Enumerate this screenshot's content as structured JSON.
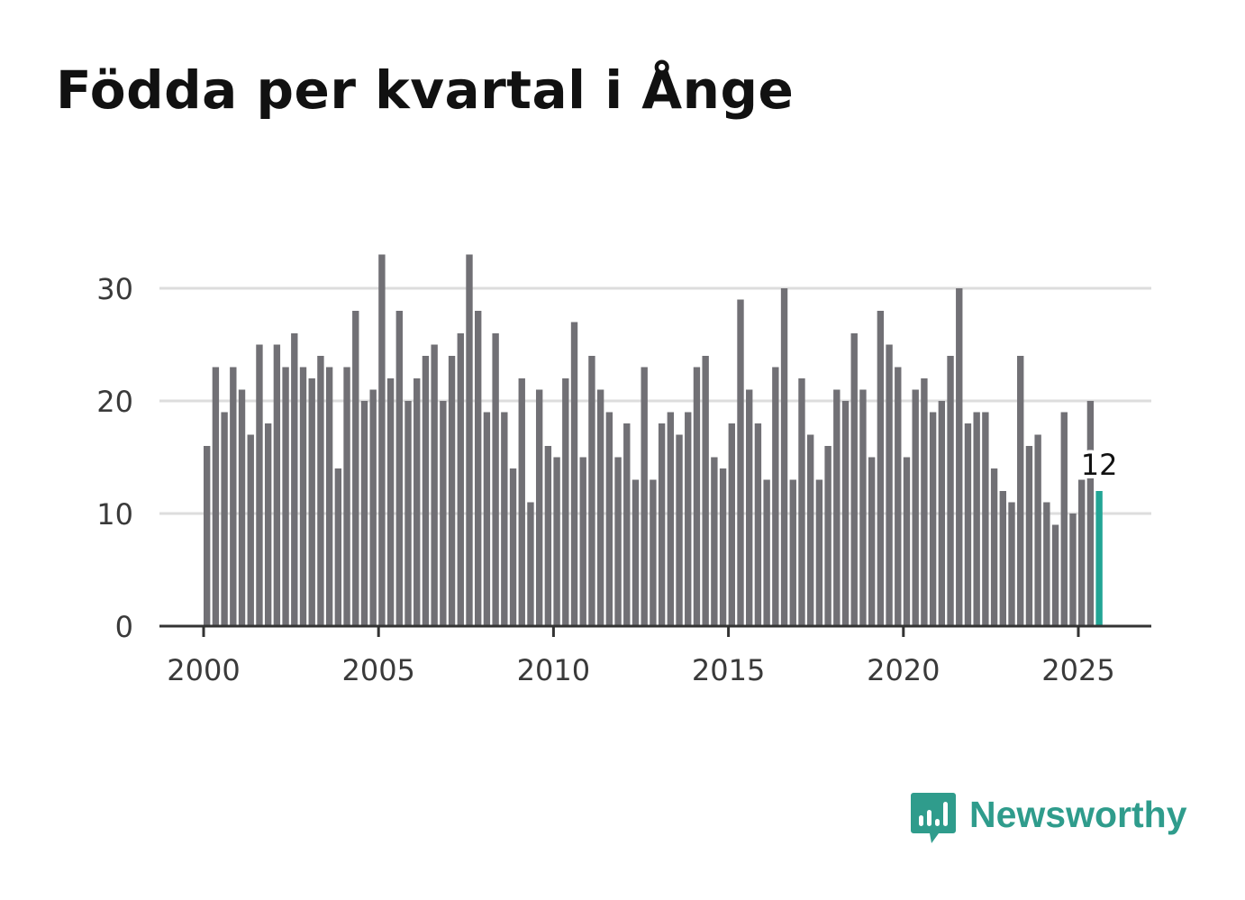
{
  "title": "Födda per kvartal i Ånge",
  "brand": {
    "name": "Newsworthy",
    "icon": "newsworthy-logo-icon",
    "color": "#2f9c8c"
  },
  "chart_data": {
    "type": "bar",
    "title": "Födda per kvartal i Ånge",
    "xlabel": "",
    "ylabel": "",
    "x_start_year": 2000,
    "periods_per_year": 4,
    "values": [
      16,
      23,
      19,
      23,
      21,
      17,
      25,
      18,
      25,
      23,
      26,
      23,
      22,
      24,
      23,
      14,
      23,
      28,
      20,
      21,
      33,
      22,
      28,
      20,
      22,
      24,
      25,
      20,
      24,
      26,
      33,
      28,
      19,
      26,
      19,
      14,
      22,
      11,
      21,
      16,
      15,
      22,
      27,
      15,
      24,
      21,
      19,
      15,
      18,
      13,
      23,
      13,
      18,
      19,
      17,
      19,
      23,
      24,
      15,
      14,
      18,
      29,
      21,
      18,
      13,
      23,
      30,
      13,
      22,
      17,
      13,
      16,
      21,
      20,
      26,
      21,
      15,
      28,
      25,
      23,
      15,
      21,
      22,
      19,
      20,
      24,
      30,
      18,
      19,
      19,
      14,
      12,
      11,
      24,
      16,
      17,
      11,
      9,
      19,
      10,
      13,
      20,
      12
    ],
    "highlight_last": true,
    "highlight_label": "12",
    "ylim": [
      0,
      33
    ],
    "yticks": [
      0,
      10,
      20,
      30
    ],
    "xlim": [
      2000,
      2027
    ],
    "xticks": [
      2000,
      2005,
      2010,
      2015,
      2020,
      2025
    ],
    "grid": true,
    "bar_color": "#717075",
    "highlight_color": "#22a595",
    "grid_color": "#dddddd",
    "axis_color": "#333333"
  }
}
